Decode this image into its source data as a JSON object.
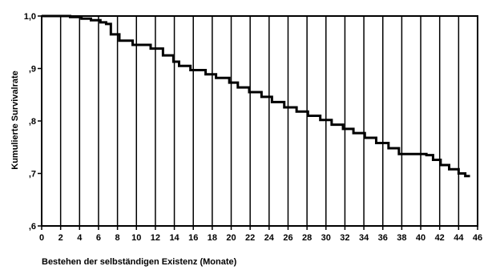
{
  "chart_data": {
    "type": "line",
    "step": true,
    "xlabel": "Bestehen der selbständigen Existenz (Monate)",
    "ylabel": "Kumulierte Survivalrate",
    "xlim": [
      0,
      46
    ],
    "ylim": [
      0.6,
      1.0
    ],
    "x_ticks": [
      0,
      2,
      4,
      6,
      8,
      10,
      12,
      14,
      16,
      18,
      20,
      22,
      24,
      26,
      28,
      30,
      32,
      34,
      36,
      38,
      40,
      42,
      44,
      46
    ],
    "x_tick_labels": [
      "0",
      "2",
      "4",
      "6",
      "8",
      "10",
      "12",
      "14",
      "16",
      "18",
      "20",
      "22",
      "24",
      "26",
      "28",
      "30",
      "32",
      "34",
      "36",
      "38",
      "40",
      "42",
      "44",
      "46"
    ],
    "y_ticks": [
      0.6,
      0.7,
      0.8,
      0.9,
      1.0
    ],
    "y_tick_labels": [
      ",6",
      ",7",
      ",8",
      ",9",
      "1,0"
    ],
    "vertical_grid": true,
    "horizontal_grid": false,
    "series": [
      {
        "x": [
          0,
          3,
          4.2,
          5.2,
          6.2,
          6.8,
          7.3,
          8.2,
          9.6,
          11.5,
          12.8,
          13.9,
          14.5,
          15.7,
          17.3,
          18.4,
          19.8,
          20.7,
          21.9,
          23.2,
          24.3,
          25.6,
          26.9,
          28.1,
          29.4,
          30.6,
          31.8,
          32.9,
          34.1,
          35.3,
          36.6,
          37.7,
          40.6,
          41.3,
          42.1,
          43.0,
          44.0,
          44.7
        ],
        "y": [
          1.0,
          0.998,
          0.995,
          0.992,
          0.988,
          0.985,
          0.965,
          0.953,
          0.945,
          0.938,
          0.925,
          0.913,
          0.905,
          0.897,
          0.889,
          0.882,
          0.873,
          0.864,
          0.855,
          0.846,
          0.836,
          0.826,
          0.818,
          0.81,
          0.802,
          0.793,
          0.785,
          0.777,
          0.768,
          0.758,
          0.748,
          0.737,
          0.735,
          0.726,
          0.716,
          0.708,
          0.7,
          0.695
        ]
      }
    ]
  }
}
